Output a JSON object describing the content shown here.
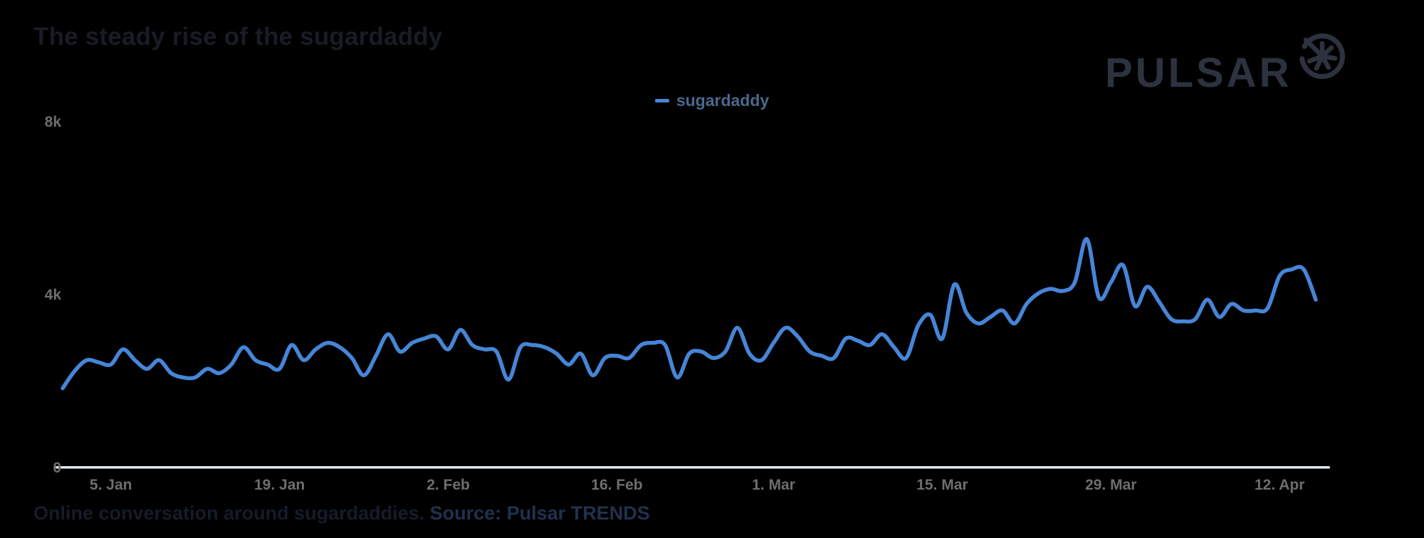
{
  "title": "The steady rise of the sugardaddy",
  "branding": {
    "logo_text": "PULSAR",
    "logo_icon": "starburst-in-circle",
    "logo_color": "#2d323f"
  },
  "legend": {
    "position": "top-center",
    "items": [
      {
        "label": "sugardaddy",
        "color": "#4685d7"
      }
    ]
  },
  "caption": {
    "text": "Online conversation around sugardaddies. ",
    "source": "Source: Pulsar TRENDS"
  },
  "colors": {
    "background": "#000000",
    "line": "#4685d7",
    "axis_line": "#dfe7ef",
    "axis_labels": "#6e6e6e",
    "legend_text": "#4a688c",
    "title_text": "#181c25"
  },
  "chart_data": {
    "type": "line",
    "title": "The steady rise of the sugardaddy",
    "xlabel": "",
    "ylabel": "",
    "x_range": {
      "start": "1. Jan",
      "end": "15. Apr",
      "step": "1 day"
    },
    "ylim": [
      0,
      8000
    ],
    "grid": false,
    "legend_position": "top-center",
    "y_ticks": [
      {
        "label": "0",
        "value": 0
      },
      {
        "label": "4k",
        "value": 4000
      },
      {
        "label": "8k",
        "value": 8000
      }
    ],
    "x_ticks": [
      {
        "label": "5. Jan",
        "index": 4
      },
      {
        "label": "19. Jan",
        "index": 18
      },
      {
        "label": "2. Feb",
        "index": 32
      },
      {
        "label": "16. Feb",
        "index": 46
      },
      {
        "label": "1. Mar",
        "index": 59
      },
      {
        "label": "15. Mar",
        "index": 73
      },
      {
        "label": "29. Mar",
        "index": 87
      },
      {
        "label": "12. Apr",
        "index": 101
      }
    ],
    "series": [
      {
        "name": "sugardaddy",
        "color": "#4685d7",
        "values": [
          1850,
          2250,
          2500,
          2450,
          2400,
          2750,
          2500,
          2300,
          2500,
          2200,
          2100,
          2100,
          2300,
          2200,
          2400,
          2800,
          2500,
          2400,
          2300,
          2850,
          2500,
          2750,
          2900,
          2800,
          2550,
          2150,
          2600,
          3100,
          2700,
          2900,
          3000,
          3050,
          2750,
          3200,
          2850,
          2750,
          2700,
          2050,
          2800,
          2850,
          2800,
          2650,
          2400,
          2650,
          2150,
          2550,
          2600,
          2550,
          2850,
          2900,
          2850,
          2100,
          2650,
          2700,
          2550,
          2700,
          3250,
          2650,
          2500,
          2900,
          3250,
          3050,
          2700,
          2600,
          2550,
          3000,
          2950,
          2850,
          3100,
          2800,
          2550,
          3300,
          3550,
          3000,
          4250,
          3600,
          3350,
          3500,
          3650,
          3350,
          3800,
          4050,
          4150,
          4100,
          4300,
          5300,
          3950,
          4300,
          4700,
          3750,
          4200,
          3850,
          3450,
          3400,
          3450,
          3900,
          3500,
          3800,
          3650,
          3650,
          3700,
          4450,
          4600,
          4600,
          3900
        ]
      }
    ]
  }
}
